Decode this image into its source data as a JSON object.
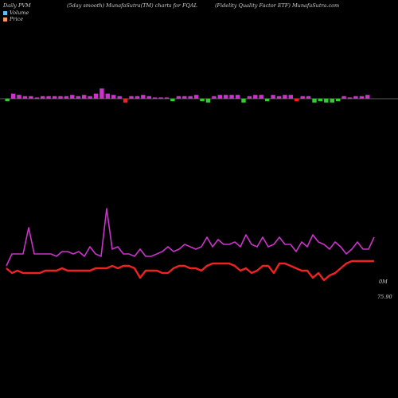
{
  "header": {
    "left": "Daily PVM",
    "center": "(5day smooth) MunafaSutra(TM) charts for FQAL",
    "right": "(Fidelity Quality Factor ETF) MunafaSutra.com"
  },
  "legend": [
    {
      "label": "Volume",
      "color": "#66bbee"
    },
    {
      "label": "Price",
      "color": "#ee9966"
    }
  ],
  "chart_data": [
    {
      "type": "bar",
      "title": "",
      "description_of_series": "signed volume bars around a baseline",
      "series": [
        {
          "values": [
            -2,
            4,
            3,
            2,
            2,
            1,
            2,
            2,
            2,
            2,
            2,
            3,
            2,
            3,
            2,
            4,
            8,
            4,
            3,
            2,
            -3,
            2,
            2,
            3,
            2,
            1,
            1,
            1,
            -2,
            2,
            2,
            2,
            3,
            -2,
            -3,
            2,
            3,
            3,
            3,
            3,
            -3,
            2,
            3,
            3,
            -2,
            3,
            2,
            3,
            3,
            -2,
            2,
            2,
            -3,
            -2,
            -3,
            -3,
            -2,
            2,
            1,
            2,
            2,
            3
          ]
        }
      ],
      "colors": {
        "up": "#cc33cc",
        "down": "#33cc33",
        "neg_red": "#ee2222"
      },
      "baseline_color": "#bbbbbb"
    },
    {
      "type": "line",
      "series": [
        {
          "values": [
            22,
            27,
            27,
            27,
            38,
            27,
            27,
            27,
            27,
            26,
            28,
            28,
            27,
            28,
            26,
            30,
            27,
            26,
            46,
            29,
            30,
            27,
            27,
            26,
            29,
            26,
            26,
            27,
            28,
            30,
            28,
            29,
            31,
            30,
            29,
            30,
            34,
            30,
            33,
            31,
            31,
            32,
            30,
            35,
            31,
            30,
            34,
            30,
            31,
            34,
            31,
            31,
            28,
            32,
            30,
            35,
            32,
            31,
            29,
            32,
            30,
            27,
            29,
            32,
            29,
            29,
            34
          ],
          "color": "#cc33cc"
        },
        {
          "values": [
            21,
            19,
            20,
            19,
            19,
            19,
            19,
            20,
            20,
            20,
            21,
            20,
            20,
            20,
            20,
            20,
            21,
            21,
            21,
            22,
            21,
            22,
            22,
            21,
            17,
            20,
            20,
            20,
            19,
            19,
            21,
            22,
            22,
            21,
            21,
            20,
            22,
            23,
            23,
            23,
            23,
            22,
            20,
            21,
            19,
            20,
            22,
            22,
            19,
            23,
            23,
            22,
            21,
            20,
            20,
            17,
            19,
            16,
            18,
            19,
            21,
            23,
            24,
            24,
            24,
            24,
            24
          ],
          "color": "#ee2222"
        }
      ],
      "annotations": [
        {
          "text": "0M"
        },
        {
          "text": "75.90"
        }
      ]
    }
  ]
}
